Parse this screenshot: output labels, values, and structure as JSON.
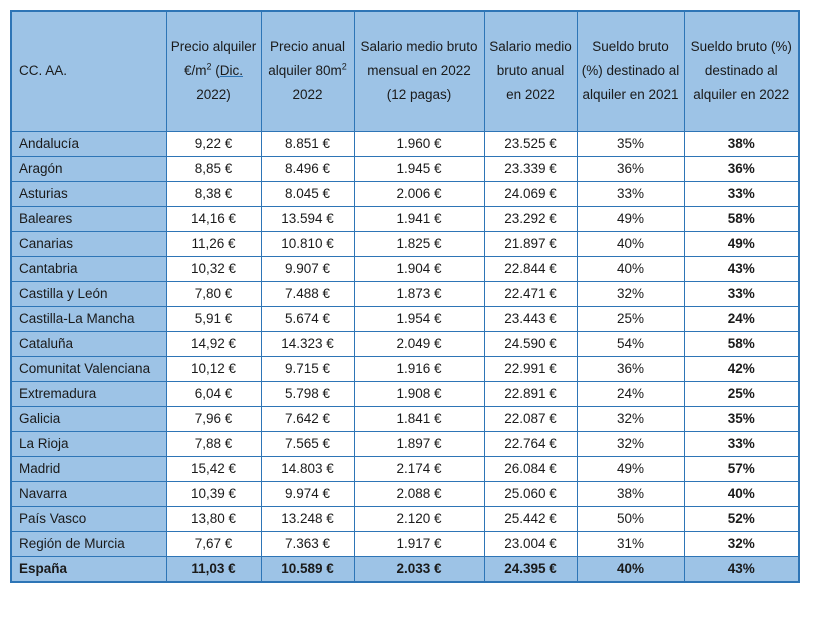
{
  "colors": {
    "fill": "#9DC3E6",
    "border": "#2E75B6",
    "text": "#1A1A1A"
  },
  "table": {
    "header": {
      "col1": "CC. AA.",
      "col2": {
        "prefix": "Precio alquiler €/m",
        "sup": "2",
        "mid": " (",
        "link": "Dic.",
        "suffix": " 2022)"
      },
      "col3": {
        "prefix": "Precio anual alquiler 80m",
        "sup": "2",
        "suffix": " 2022"
      },
      "col4": "Salario medio bruto mensual en 2022 (12 pagas)",
      "col5": "Salario medio bruto anual en 2022",
      "col6": "Sueldo bruto (%) destinado al alquiler en 2021",
      "col7": "Sueldo bruto (%) destinado al alquiler en 2022"
    },
    "rows": [
      {
        "name": "Andalucía",
        "values": [
          "9,22 €",
          "8.851 €",
          "1.960 €",
          "23.525 €",
          "35%",
          "38%"
        ]
      },
      {
        "name": "Aragón",
        "values": [
          "8,85 €",
          "8.496 €",
          "1.945 €",
          "23.339 €",
          "36%",
          "36%"
        ]
      },
      {
        "name": "Asturias",
        "values": [
          "8,38 €",
          "8.045 €",
          "2.006 €",
          "24.069 €",
          "33%",
          "33%"
        ]
      },
      {
        "name": "Baleares",
        "values": [
          "14,16 €",
          "13.594 €",
          "1.941 €",
          "23.292 €",
          "49%",
          "58%"
        ]
      },
      {
        "name": "Canarias",
        "values": [
          "11,26 €",
          "10.810 €",
          "1.825 €",
          "21.897 €",
          "40%",
          "49%"
        ]
      },
      {
        "name": "Cantabria",
        "values": [
          "10,32 €",
          "9.907 €",
          "1.904 €",
          "22.844 €",
          "40%",
          "43%"
        ]
      },
      {
        "name": "Castilla y León",
        "values": [
          "7,80 €",
          "7.488 €",
          "1.873 €",
          "22.471 €",
          "32%",
          "33%"
        ]
      },
      {
        "name": "Castilla-La Mancha",
        "values": [
          "5,91 €",
          "5.674 €",
          "1.954 €",
          "23.443 €",
          "25%",
          "24%"
        ]
      },
      {
        "name": "Cataluña",
        "values": [
          "14,92 €",
          "14.323 €",
          "2.049 €",
          "24.590 €",
          "54%",
          "58%"
        ]
      },
      {
        "name": "Comunitat Valenciana",
        "values": [
          "10,12 €",
          "9.715 €",
          "1.916 €",
          "22.991 €",
          "36%",
          "42%"
        ]
      },
      {
        "name": "Extremadura",
        "values": [
          "6,04 €",
          "5.798 €",
          "1.908 €",
          "22.891 €",
          "24%",
          "25%"
        ]
      },
      {
        "name": "Galicia",
        "values": [
          "7,96 €",
          "7.642 €",
          "1.841 €",
          "22.087 €",
          "32%",
          "35%"
        ]
      },
      {
        "name": "La Rioja",
        "values": [
          "7,88 €",
          "7.565 €",
          "1.897 €",
          "22.764 €",
          "32%",
          "33%"
        ]
      },
      {
        "name": "Madrid",
        "values": [
          "15,42 €",
          "14.803 €",
          "2.174 €",
          "26.084 €",
          "49%",
          "57%"
        ]
      },
      {
        "name": "Navarra",
        "values": [
          "10,39 €",
          "9.974 €",
          "2.088 €",
          "25.060 €",
          "38%",
          "40%"
        ]
      },
      {
        "name": "País Vasco",
        "values": [
          "13,80 €",
          "13.248 €",
          "2.120 €",
          "25.442 €",
          "50%",
          "52%"
        ]
      },
      {
        "name": "Región de Murcia",
        "values": [
          "7,67 €",
          "7.363 €",
          "1.917 €",
          "23.004 €",
          "31%",
          "32%"
        ]
      }
    ],
    "total_row": {
      "name": "España",
      "values": [
        "11,03 €",
        "10.589 €",
        "2.033 €",
        "24.395 €",
        "40%",
        "43%"
      ]
    }
  }
}
